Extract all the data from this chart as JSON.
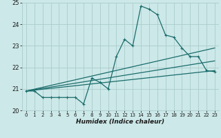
{
  "xlabel": "Humidex (Indice chaleur)",
  "bg_color": "#cce8e8",
  "grid_color": "#aacccc",
  "line_color": "#1a6b6b",
  "xlim": [
    -0.5,
    23.5
  ],
  "ylim": [
    20,
    25
  ],
  "yticks": [
    20,
    21,
    22,
    23,
    24,
    25
  ],
  "xticks": [
    0,
    1,
    2,
    3,
    4,
    5,
    6,
    7,
    8,
    9,
    10,
    11,
    12,
    13,
    14,
    15,
    16,
    17,
    18,
    19,
    20,
    21,
    22,
    23
  ],
  "series": {
    "line1": {
      "x": [
        0,
        1,
        2,
        3,
        4,
        5,
        6,
        7,
        8,
        9,
        10,
        11,
        12,
        13,
        14,
        15,
        16,
        17,
        18,
        19,
        20,
        21,
        22,
        23
      ],
      "y": [
        20.9,
        20.9,
        20.6,
        20.6,
        20.6,
        20.6,
        20.6,
        20.3,
        21.5,
        21.3,
        21.0,
        22.5,
        23.3,
        23.0,
        24.85,
        24.7,
        24.45,
        23.5,
        23.4,
        22.9,
        22.5,
        22.5,
        21.85,
        21.8
      ]
    },
    "line2": {
      "x": [
        0,
        23
      ],
      "y": [
        20.9,
        22.9
      ]
    },
    "line3": {
      "x": [
        0,
        23
      ],
      "y": [
        20.9,
        22.3
      ]
    },
    "line4": {
      "x": [
        0,
        23
      ],
      "y": [
        20.9,
        21.85
      ]
    }
  }
}
